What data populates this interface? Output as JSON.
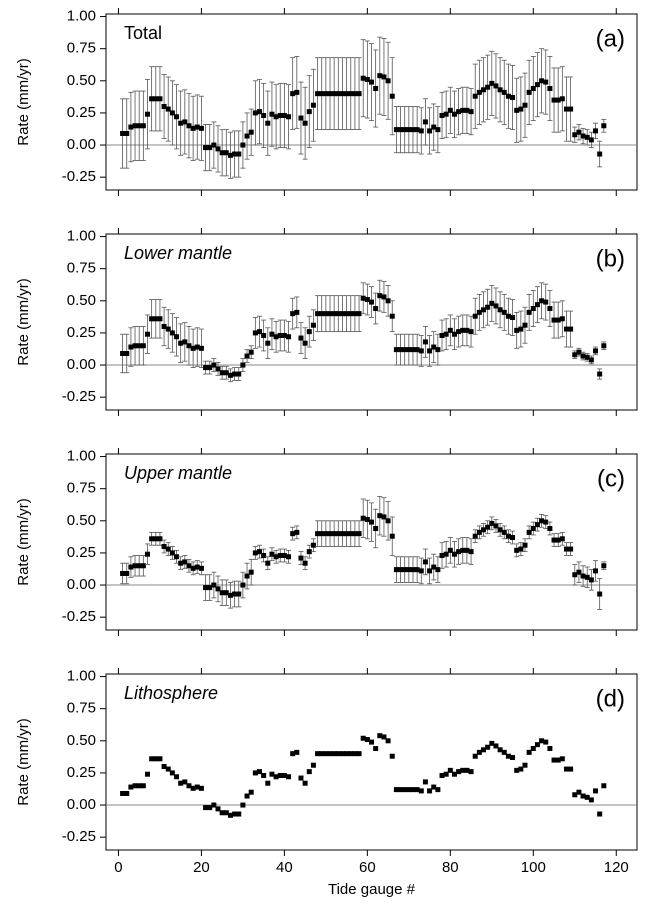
{
  "chart_data": [
    {
      "type": "scatter",
      "annotation": "Total",
      "panel_label": "(a)",
      "ylabel": "Rate (mm/yr)",
      "x": [
        1,
        2,
        3,
        4,
        5,
        6,
        7,
        8,
        9,
        10,
        11,
        12,
        13,
        14,
        15,
        16,
        17,
        18,
        19,
        20,
        21,
        22,
        23,
        24,
        25,
        26,
        27,
        28,
        29,
        30,
        31,
        32,
        33,
        34,
        35,
        36,
        37,
        38,
        39,
        40,
        41,
        42,
        43,
        44,
        45,
        46,
        47,
        48,
        49,
        50,
        51,
        52,
        53,
        54,
        55,
        56,
        57,
        58,
        59,
        60,
        61,
        62,
        63,
        64,
        65,
        66,
        67,
        68,
        69,
        70,
        71,
        72,
        73,
        74,
        75,
        76,
        77,
        78,
        79,
        80,
        81,
        82,
        83,
        84,
        85,
        86,
        87,
        88,
        89,
        90,
        91,
        92,
        93,
        94,
        95,
        96,
        97,
        98,
        99,
        100,
        101,
        102,
        103,
        104,
        105,
        106,
        107,
        108,
        109,
        110,
        111,
        112,
        113,
        114,
        115,
        116,
        117
      ],
      "values": [
        0.09,
        0.09,
        0.14,
        0.15,
        0.15,
        0.15,
        0.24,
        0.36,
        0.36,
        0.36,
        0.3,
        0.28,
        0.25,
        0.22,
        0.17,
        0.18,
        0.15,
        0.13,
        0.14,
        0.13,
        -0.02,
        -0.02,
        0,
        -0.03,
        -0.06,
        -0.06,
        -0.08,
        -0.07,
        -0.07,
        0,
        0.07,
        0.1,
        0.25,
        0.26,
        0.23,
        0.17,
        0.24,
        0.22,
        0.23,
        0.23,
        0.22,
        0.4,
        0.41,
        0.21,
        0.17,
        0.26,
        0.31,
        0.4,
        0.4,
        0.4,
        0.4,
        0.4,
        0.4,
        0.4,
        0.4,
        0.4,
        0.4,
        0.4,
        0.52,
        0.51,
        0.49,
        0.44,
        0.54,
        0.53,
        0.5,
        0.38,
        0.12,
        0.12,
        0.12,
        0.12,
        0.12,
        0.12,
        0.11,
        0.18,
        0.11,
        0.14,
        0.12,
        0.23,
        0.24,
        0.27,
        0.24,
        0.26,
        0.27,
        0.27,
        0.26,
        0.38,
        0.41,
        0.43,
        0.45,
        0.48,
        0.46,
        0.43,
        0.41,
        0.38,
        0.37,
        0.27,
        0.28,
        0.31,
        0.41,
        0.44,
        0.47,
        0.5,
        0.49,
        0.44,
        0.35,
        0.35,
        0.36,
        0.28,
        0.28,
        0.08,
        0.1,
        0.07,
        0.06,
        0.04,
        0.11,
        -0.07,
        0.15
      ],
      "errors": [
        0.27,
        0.27,
        0.27,
        0.27,
        0.27,
        0.27,
        0.27,
        0.25,
        0.25,
        0.25,
        0.25,
        0.25,
        0.25,
        0.25,
        0.25,
        0.25,
        0.25,
        0.25,
        0.25,
        0.25,
        0.18,
        0.18,
        0.18,
        0.18,
        0.18,
        0.18,
        0.18,
        0.18,
        0.18,
        0.18,
        0.18,
        0.18,
        0.25,
        0.25,
        0.25,
        0.25,
        0.25,
        0.25,
        0.25,
        0.25,
        0.25,
        0.28,
        0.28,
        0.28,
        0.28,
        0.28,
        0.28,
        0.28,
        0.28,
        0.28,
        0.28,
        0.28,
        0.28,
        0.28,
        0.28,
        0.28,
        0.28,
        0.28,
        0.3,
        0.3,
        0.3,
        0.3,
        0.3,
        0.3,
        0.3,
        0.3,
        0.18,
        0.18,
        0.18,
        0.18,
        0.18,
        0.18,
        0.18,
        0.18,
        0.18,
        0.18,
        0.18,
        0.18,
        0.18,
        0.18,
        0.18,
        0.18,
        0.18,
        0.18,
        0.18,
        0.25,
        0.25,
        0.25,
        0.25,
        0.25,
        0.25,
        0.25,
        0.25,
        0.25,
        0.25,
        0.25,
        0.25,
        0.25,
        0.25,
        0.25,
        0.25,
        0.25,
        0.25,
        0.25,
        0.25,
        0.25,
        0.25,
        0.25,
        0.25,
        0.06,
        0.06,
        0.06,
        0.06,
        0.06,
        0.06,
        0.1,
        0.05
      ],
      "xlim": [
        -3,
        125
      ],
      "ylim": [
        -0.35,
        1.02
      ],
      "xticks": [
        0,
        20,
        40,
        60,
        80,
        100,
        120
      ],
      "yticks": [
        {
          "value": 1,
          "label": "1.00"
        },
        0.75,
        {
          "value": 0.5,
          "label": "0.50"
        },
        0.25,
        {
          "value": 0,
          "label": "0.00"
        },
        -0.25
      ],
      "color": "#000000"
    },
    {
      "type": "scatter",
      "annotation": "Lower mantle",
      "panel_label": "(b)",
      "ylabel": "Rate (mm/yr)",
      "x": [
        1,
        2,
        3,
        4,
        5,
        6,
        7,
        8,
        9,
        10,
        11,
        12,
        13,
        14,
        15,
        16,
        17,
        18,
        19,
        20,
        21,
        22,
        23,
        24,
        25,
        26,
        27,
        28,
        29,
        30,
        31,
        32,
        33,
        34,
        35,
        36,
        37,
        38,
        39,
        40,
        41,
        42,
        43,
        44,
        45,
        46,
        47,
        48,
        49,
        50,
        51,
        52,
        53,
        54,
        55,
        56,
        57,
        58,
        59,
        60,
        61,
        62,
        63,
        64,
        65,
        66,
        67,
        68,
        69,
        70,
        71,
        72,
        73,
        74,
        75,
        76,
        77,
        78,
        79,
        80,
        81,
        82,
        83,
        84,
        85,
        86,
        87,
        88,
        89,
        90,
        91,
        92,
        93,
        94,
        95,
        96,
        97,
        98,
        99,
        100,
        101,
        102,
        103,
        104,
        105,
        106,
        107,
        108,
        109,
        110,
        111,
        112,
        113,
        114,
        115,
        116,
        117
      ],
      "values": [
        0.09,
        0.09,
        0.14,
        0.15,
        0.15,
        0.15,
        0.24,
        0.36,
        0.36,
        0.36,
        0.3,
        0.28,
        0.25,
        0.22,
        0.17,
        0.18,
        0.15,
        0.13,
        0.14,
        0.13,
        -0.02,
        -0.02,
        0,
        -0.03,
        -0.06,
        -0.06,
        -0.08,
        -0.07,
        -0.07,
        0,
        0.07,
        0.1,
        0.25,
        0.26,
        0.23,
        0.17,
        0.24,
        0.22,
        0.23,
        0.23,
        0.22,
        0.4,
        0.41,
        0.21,
        0.17,
        0.26,
        0.31,
        0.4,
        0.4,
        0.4,
        0.4,
        0.4,
        0.4,
        0.4,
        0.4,
        0.4,
        0.4,
        0.4,
        0.52,
        0.51,
        0.49,
        0.44,
        0.54,
        0.53,
        0.5,
        0.38,
        0.12,
        0.12,
        0.12,
        0.12,
        0.12,
        0.12,
        0.11,
        0.18,
        0.11,
        0.14,
        0.12,
        0.23,
        0.24,
        0.27,
        0.24,
        0.26,
        0.27,
        0.27,
        0.26,
        0.38,
        0.41,
        0.43,
        0.45,
        0.48,
        0.46,
        0.43,
        0.41,
        0.38,
        0.37,
        0.27,
        0.28,
        0.31,
        0.41,
        0.44,
        0.47,
        0.5,
        0.49,
        0.44,
        0.35,
        0.35,
        0.36,
        0.28,
        0.28,
        0.08,
        0.1,
        0.07,
        0.06,
        0.04,
        0.11,
        -0.07,
        0.15
      ],
      "errors": [
        0.15,
        0.15,
        0.15,
        0.15,
        0.15,
        0.15,
        0.15,
        0.15,
        0.15,
        0.15,
        0.15,
        0.15,
        0.15,
        0.15,
        0.15,
        0.15,
        0.15,
        0.15,
        0.15,
        0.15,
        0.05,
        0.05,
        0.05,
        0.05,
        0.05,
        0.05,
        0.05,
        0.05,
        0.05,
        0.05,
        0.05,
        0.05,
        0.12,
        0.12,
        0.12,
        0.12,
        0.12,
        0.12,
        0.12,
        0.12,
        0.12,
        0.12,
        0.12,
        0.12,
        0.12,
        0.12,
        0.12,
        0.14,
        0.14,
        0.14,
        0.14,
        0.14,
        0.14,
        0.14,
        0.14,
        0.14,
        0.14,
        0.14,
        0.12,
        0.12,
        0.12,
        0.12,
        0.12,
        0.12,
        0.12,
        0.12,
        0.12,
        0.12,
        0.12,
        0.12,
        0.12,
        0.12,
        0.12,
        0.12,
        0.12,
        0.12,
        0.12,
        0.12,
        0.12,
        0.12,
        0.12,
        0.12,
        0.12,
        0.12,
        0.12,
        0.14,
        0.14,
        0.14,
        0.14,
        0.14,
        0.14,
        0.14,
        0.14,
        0.14,
        0.14,
        0.14,
        0.14,
        0.14,
        0.14,
        0.14,
        0.14,
        0.14,
        0.14,
        0.14,
        0.14,
        0.14,
        0.14,
        0.14,
        0.14,
        0.03,
        0.03,
        0.03,
        0.03,
        0.03,
        0.03,
        0.04,
        0.03
      ],
      "xlim": [
        -3,
        125
      ],
      "ylim": [
        -0.35,
        1.02
      ],
      "xticks": [
        0,
        20,
        40,
        60,
        80,
        100,
        120
      ],
      "yticks": [
        {
          "value": 1,
          "label": "1.00"
        },
        0.75,
        {
          "value": 0.5,
          "label": "0.50"
        },
        0.25,
        {
          "value": 0,
          "label": "0.00"
        },
        -0.25
      ],
      "color": "#000000"
    },
    {
      "type": "scatter",
      "annotation": "Upper mantle",
      "panel_label": "(c)",
      "ylabel": "Rate (mm/yr)",
      "x": [
        1,
        2,
        3,
        4,
        5,
        6,
        7,
        8,
        9,
        10,
        11,
        12,
        13,
        14,
        15,
        16,
        17,
        18,
        19,
        20,
        21,
        22,
        23,
        24,
        25,
        26,
        27,
        28,
        29,
        30,
        31,
        32,
        33,
        34,
        35,
        36,
        37,
        38,
        39,
        40,
        41,
        42,
        43,
        44,
        45,
        46,
        47,
        48,
        49,
        50,
        51,
        52,
        53,
        54,
        55,
        56,
        57,
        58,
        59,
        60,
        61,
        62,
        63,
        64,
        65,
        66,
        67,
        68,
        69,
        70,
        71,
        72,
        73,
        74,
        75,
        76,
        77,
        78,
        79,
        80,
        81,
        82,
        83,
        84,
        85,
        86,
        87,
        88,
        89,
        90,
        91,
        92,
        93,
        94,
        95,
        96,
        97,
        98,
        99,
        100,
        101,
        102,
        103,
        104,
        105,
        106,
        107,
        108,
        109,
        110,
        111,
        112,
        113,
        114,
        115,
        116,
        117
      ],
      "values": [
        0.09,
        0.09,
        0.14,
        0.15,
        0.15,
        0.15,
        0.24,
        0.36,
        0.36,
        0.36,
        0.3,
        0.28,
        0.25,
        0.22,
        0.17,
        0.18,
        0.15,
        0.13,
        0.14,
        0.13,
        -0.02,
        -0.02,
        0,
        -0.03,
        -0.06,
        -0.06,
        -0.08,
        -0.07,
        -0.07,
        0,
        0.07,
        0.1,
        0.25,
        0.26,
        0.23,
        0.17,
        0.24,
        0.22,
        0.23,
        0.23,
        0.22,
        0.4,
        0.41,
        0.21,
        0.17,
        0.26,
        0.31,
        0.4,
        0.4,
        0.4,
        0.4,
        0.4,
        0.4,
        0.4,
        0.4,
        0.4,
        0.4,
        0.4,
        0.52,
        0.51,
        0.49,
        0.44,
        0.54,
        0.53,
        0.5,
        0.38,
        0.12,
        0.12,
        0.12,
        0.12,
        0.12,
        0.12,
        0.11,
        0.18,
        0.11,
        0.14,
        0.12,
        0.23,
        0.24,
        0.27,
        0.24,
        0.26,
        0.27,
        0.27,
        0.26,
        0.38,
        0.41,
        0.43,
        0.45,
        0.48,
        0.46,
        0.43,
        0.41,
        0.38,
        0.37,
        0.27,
        0.28,
        0.31,
        0.41,
        0.44,
        0.47,
        0.5,
        0.49,
        0.44,
        0.35,
        0.35,
        0.36,
        0.28,
        0.28,
        0.08,
        0.1,
        0.07,
        0.06,
        0.04,
        0.11,
        -0.07,
        0.15
      ],
      "errors": [
        0.08,
        0.08,
        0.08,
        0.08,
        0.08,
        0.08,
        0.08,
        0.05,
        0.05,
        0.05,
        0.05,
        0.05,
        0.05,
        0.05,
        0.05,
        0.05,
        0.05,
        0.05,
        0.05,
        0.05,
        0.1,
        0.1,
        0.1,
        0.1,
        0.1,
        0.1,
        0.1,
        0.1,
        0.1,
        0.1,
        0.1,
        0.1,
        0.05,
        0.05,
        0.05,
        0.05,
        0.05,
        0.05,
        0.05,
        0.05,
        0.05,
        0.05,
        0.05,
        0.05,
        0.05,
        0.05,
        0.05,
        0.1,
        0.1,
        0.1,
        0.1,
        0.1,
        0.1,
        0.1,
        0.1,
        0.1,
        0.1,
        0.1,
        0.15,
        0.15,
        0.15,
        0.15,
        0.15,
        0.15,
        0.15,
        0.15,
        0.1,
        0.1,
        0.1,
        0.1,
        0.1,
        0.1,
        0.1,
        0.1,
        0.1,
        0.1,
        0.1,
        0.1,
        0.1,
        0.1,
        0.1,
        0.1,
        0.1,
        0.1,
        0.1,
        0.05,
        0.05,
        0.05,
        0.05,
        0.05,
        0.05,
        0.05,
        0.05,
        0.05,
        0.05,
        0.05,
        0.05,
        0.05,
        0.05,
        0.05,
        0.05,
        0.05,
        0.05,
        0.05,
        0.05,
        0.05,
        0.05,
        0.05,
        0.05,
        0.08,
        0.08,
        0.08,
        0.08,
        0.08,
        0.08,
        0.12,
        0.03
      ],
      "xlim": [
        -3,
        125
      ],
      "ylim": [
        -0.35,
        1.02
      ],
      "xticks": [
        0,
        20,
        40,
        60,
        80,
        100,
        120
      ],
      "yticks": [
        {
          "value": 1,
          "label": "1.00"
        },
        0.75,
        {
          "value": 0.5,
          "label": "0.50"
        },
        0.25,
        {
          "value": 0,
          "label": "0.00"
        },
        -0.25
      ],
      "color": "#000000"
    },
    {
      "type": "scatter",
      "annotation": "Lithosphere",
      "panel_label": "(d)",
      "ylabel": "Rate (mm/yr)",
      "xlabel": "Tide gauge #",
      "x": [
        1,
        2,
        3,
        4,
        5,
        6,
        7,
        8,
        9,
        10,
        11,
        12,
        13,
        14,
        15,
        16,
        17,
        18,
        19,
        20,
        21,
        22,
        23,
        24,
        25,
        26,
        27,
        28,
        29,
        30,
        31,
        32,
        33,
        34,
        35,
        36,
        37,
        38,
        39,
        40,
        41,
        42,
        43,
        44,
        45,
        46,
        47,
        48,
        49,
        50,
        51,
        52,
        53,
        54,
        55,
        56,
        57,
        58,
        59,
        60,
        61,
        62,
        63,
        64,
        65,
        66,
        67,
        68,
        69,
        70,
        71,
        72,
        73,
        74,
        75,
        76,
        77,
        78,
        79,
        80,
        81,
        82,
        83,
        84,
        85,
        86,
        87,
        88,
        89,
        90,
        91,
        92,
        93,
        94,
        95,
        96,
        97,
        98,
        99,
        100,
        101,
        102,
        103,
        104,
        105,
        106,
        107,
        108,
        109,
        110,
        111,
        112,
        113,
        114,
        115,
        116,
        117
      ],
      "values": [
        0.09,
        0.09,
        0.14,
        0.15,
        0.15,
        0.15,
        0.24,
        0.36,
        0.36,
        0.36,
        0.3,
        0.28,
        0.25,
        0.22,
        0.17,
        0.18,
        0.15,
        0.13,
        0.14,
        0.13,
        -0.02,
        -0.02,
        0,
        -0.03,
        -0.06,
        -0.06,
        -0.08,
        -0.07,
        -0.07,
        0,
        0.07,
        0.1,
        0.25,
        0.26,
        0.23,
        0.17,
        0.24,
        0.22,
        0.23,
        0.23,
        0.22,
        0.4,
        0.41,
        0.21,
        0.17,
        0.26,
        0.31,
        0.4,
        0.4,
        0.4,
        0.4,
        0.4,
        0.4,
        0.4,
        0.4,
        0.4,
        0.4,
        0.4,
        0.52,
        0.51,
        0.49,
        0.44,
        0.54,
        0.53,
        0.5,
        0.38,
        0.12,
        0.12,
        0.12,
        0.12,
        0.12,
        0.12,
        0.11,
        0.18,
        0.11,
        0.14,
        0.12,
        0.23,
        0.24,
        0.27,
        0.24,
        0.26,
        0.27,
        0.27,
        0.26,
        0.38,
        0.41,
        0.43,
        0.45,
        0.48,
        0.46,
        0.43,
        0.41,
        0.38,
        0.37,
        0.27,
        0.28,
        0.31,
        0.41,
        0.44,
        0.47,
        0.5,
        0.49,
        0.44,
        0.35,
        0.35,
        0.36,
        0.28,
        0.28,
        0.08,
        0.1,
        0.07,
        0.06,
        0.04,
        0.11,
        -0.07,
        0.15
      ],
      "xlim": [
        -3,
        125
      ],
      "ylim": [
        -0.35,
        1.02
      ],
      "xticks": [
        0,
        20,
        40,
        60,
        80,
        100,
        120
      ],
      "yticks": [
        {
          "value": 1,
          "label": "1.00"
        },
        0.75,
        {
          "value": 0.5,
          "label": "0.50"
        },
        0.25,
        {
          "value": 0,
          "label": "0.00"
        },
        -0.25
      ],
      "color": "#000000"
    }
  ]
}
